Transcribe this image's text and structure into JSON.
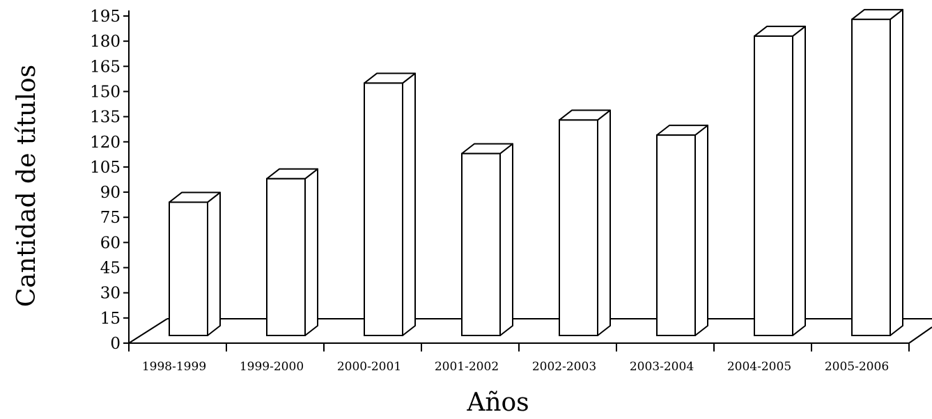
{
  "chart_data": {
    "type": "bar",
    "categories": [
      "1998-1999",
      "1999-2000",
      "2000-2001",
      "2001-2002",
      "2002-2003",
      "2003-2004",
      "2004-2005",
      "2005-2006"
    ],
    "values": [
      84,
      98,
      155,
      113,
      133,
      124,
      183,
      193
    ],
    "title": "",
    "xlabel": "Años",
    "ylabel": "Cantidad de títulos",
    "ylim": [
      0,
      195
    ],
    "yticks": [
      0,
      15,
      30,
      45,
      60,
      75,
      90,
      105,
      120,
      135,
      150,
      165,
      180,
      195
    ],
    "grid": false,
    "style": "3d-bars",
    "bar_fill": "#ffffff",
    "bar_stroke": "#000000"
  }
}
